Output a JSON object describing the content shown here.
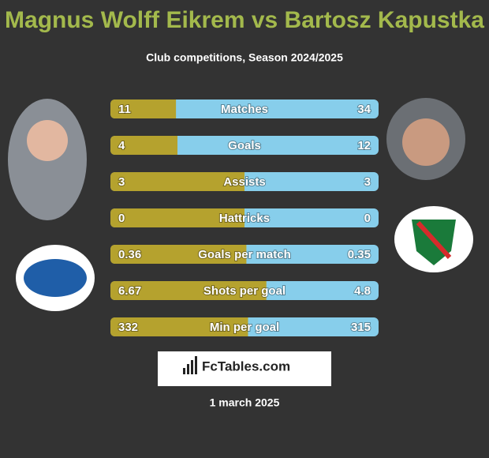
{
  "chart_data": {
    "type": "comparison",
    "title": "Magnus Wolff Eikrem vs Bartosz Kapustka",
    "subtitle": "Club competitions, Season 2024/2025",
    "categories": [
      "Matches",
      "Goals",
      "Assists",
      "Hattricks",
      "Goals per match",
      "Shots per goal",
      "Min per goal"
    ],
    "series": [
      {
        "color": "#b5a22e",
        "values": [
          11,
          4,
          3,
          0,
          0.36,
          6.67,
          332
        ]
      },
      {
        "color": "#87ceeb",
        "values": [
          34,
          12,
          3,
          0,
          0.35,
          4.8,
          315
        ]
      }
    ],
    "source": "FcTables.com",
    "date": "1 march 2025"
  }
}
